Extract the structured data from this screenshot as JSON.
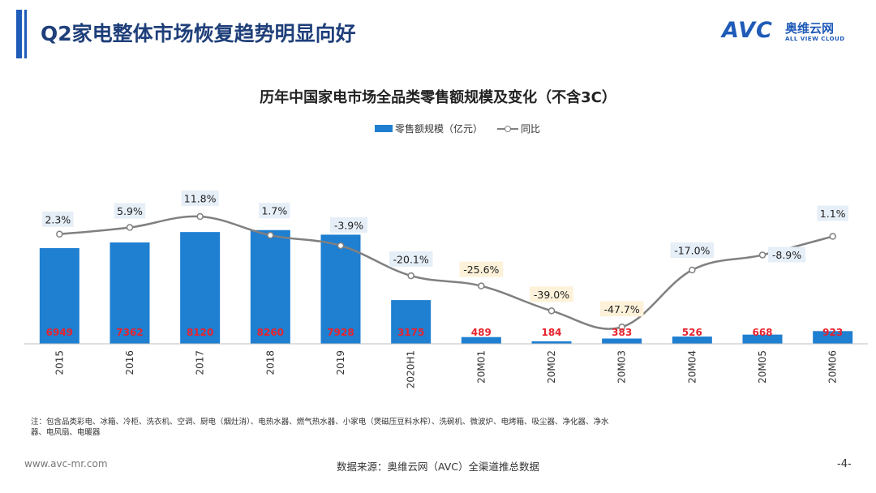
{
  "header": {
    "title": "Q2家电整体市场恢复趋势明显向好",
    "logo_avc": "AVC",
    "logo_cn": "奥维云网",
    "logo_en": "ALL VIEW CLOUD"
  },
  "colors": {
    "accent": "#1f5bb8",
    "bar": "#1f7fd1",
    "line": "#808080",
    "value_red": "#e8232d",
    "label_box_blue": "#e6eef7",
    "label_box_yellow": "#fdf2d9"
  },
  "chart_data": {
    "type": "bar",
    "title": "历年中国家电市场全品类零售额规模及变化（不含3C）",
    "legend_position": "top",
    "categories": [
      "2015",
      "2016",
      "2017",
      "2018",
      "2019",
      "2020H1",
      "20M01",
      "20M02",
      "20M03",
      "20M04",
      "20M05",
      "20M06"
    ],
    "series": [
      {
        "name": "零售额规模（亿元）",
        "type": "bar",
        "values": [
          6949,
          7362,
          8120,
          8260,
          7928,
          3175,
          489,
          184,
          383,
          526,
          668,
          923
        ],
        "value_labels": [
          "6949",
          "7362",
          "8120",
          "8260",
          "7928",
          "3175",
          "489",
          "184",
          "383",
          "526",
          "668",
          "923"
        ]
      },
      {
        "name": "同比",
        "type": "line",
        "values": [
          2.3,
          5.9,
          11.8,
          1.7,
          -3.9,
          -20.1,
          -25.6,
          -39.0,
          -47.7,
          -17.0,
          -8.9,
          1.1
        ],
        "value_labels": [
          "2.3%",
          "5.9%",
          "11.8%",
          "1.7%",
          "-3.9%",
          "-20.1%",
          "-25.6%",
          "-39.0%",
          "-47.7%",
          "-17.0%",
          "-8.9%",
          "1.1%"
        ],
        "highlight": [
          false,
          false,
          false,
          false,
          false,
          false,
          true,
          true,
          true,
          false,
          false,
          false
        ]
      }
    ],
    "ylim": [
      0,
      8600
    ],
    "y2lim": [
      -55,
      14
    ],
    "grid": false
  },
  "note": "注：包含品类彩电、冰箱、冷柜、洗衣机、空调、厨电（烟灶消）、电热水器、燃气热水器、小家电（煲磁压豆料水榨）、洗碗机、微波炉、电烤箱、吸尘器、净化器、净水器、电风扇、电暖器",
  "footer": {
    "url": "www.avc-mr.com",
    "source": "数据来源：奥维云网（AVC）全渠道推总数据",
    "page": "-4-"
  }
}
